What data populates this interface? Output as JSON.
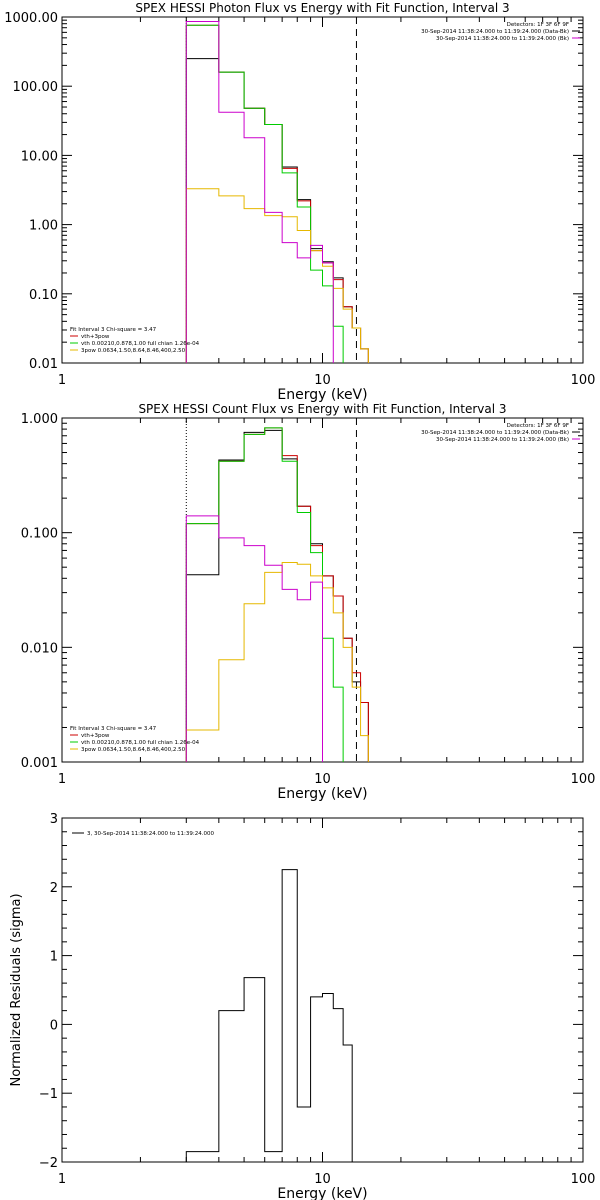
{
  "chart_data": [
    {
      "type": "line",
      "title": "SPEX HESSI Photon Flux vs Energy with Fit Function, Interval 3",
      "xlabel": "Energy (keV)",
      "ylabel": "",
      "xscale": "log",
      "yscale": "log",
      "xlim": [
        1,
        100
      ],
      "ylim": [
        0.01,
        1000
      ],
      "xticks": [
        {
          "v": 1,
          "label": "1"
        },
        {
          "v": 10,
          "label": "10"
        },
        {
          "v": 100,
          "label": "100"
        }
      ],
      "yticks": [
        {
          "v": 1000,
          "label": "1000.00"
        },
        {
          "v": 100,
          "label": "100.00"
        },
        {
          "v": 10,
          "label": "10.00"
        },
        {
          "v": 1,
          "label": "1.00"
        },
        {
          "v": 0.1,
          "label": "0.10"
        },
        {
          "v": 0.01,
          "label": "0.01"
        }
      ],
      "vlines": [
        {
          "x": 3.0,
          "style": "dotted",
          "color": "#000000"
        },
        {
          "x": 13.5,
          "style": "dashed",
          "color": "#000000"
        }
      ],
      "info_lines": [
        "Detectors: 1F 3F 6F 9F",
        "30-Sep-2014 11:38:24.000 to 11:39:24.000 (Data-Bk)",
        "30-Sep-2014 11:38:24.000 to 11:39:24.000 (Bk)"
      ],
      "info_colors": [
        "#000000",
        "#000000",
        "#cc00cc"
      ],
      "legend_position": "bottom-left",
      "legend_header": "Fit Interval 3   Chi-square = 3.47",
      "legend": [
        {
          "text": "vth+3pow",
          "color": "#cc0000"
        },
        {
          "text": "vth 0.00210,0.878,1.00  full chian 1.26e-04",
          "color": "#00cc00"
        },
        {
          "text": "3pow 0.0634,1.50,8.64,8.46,400,2.50",
          "color": "#e6b800"
        }
      ],
      "edges": [
        3.0,
        4.0,
        5.0,
        6.0,
        7.0,
        8.0,
        9.0,
        10.0,
        11.0,
        12.0,
        13.0,
        14.0,
        15.0,
        16.0
      ],
      "series": [
        {
          "color": "#000000",
          "values": [
            250,
            160,
            48,
            28,
            6.8,
            2.3,
            0.45,
            0.29,
            0.17,
            0.065,
            0.032,
            0.016,
            0.0
          ]
        },
        {
          "color": "#cc0000",
          "values": [
            760,
            160,
            48,
            28,
            6.5,
            2.2,
            0.42,
            0.28,
            0.16,
            0.065,
            0.032,
            0.016,
            0.0
          ]
        },
        {
          "color": "#00cc00",
          "values": [
            760,
            160,
            48,
            28,
            5.6,
            1.8,
            0.22,
            0.13,
            0.034,
            0.0,
            0.0,
            0.0,
            0.0
          ]
        },
        {
          "color": "#e6b800",
          "values": [
            3.3,
            2.6,
            1.7,
            1.35,
            1.3,
            0.82,
            0.42,
            0.25,
            0.12,
            0.06,
            0.032,
            0.016,
            0.0
          ]
        },
        {
          "color": "#cc00cc",
          "values": [
            860,
            42,
            18,
            1.5,
            0.55,
            0.33,
            0.5,
            0.28,
            0.0,
            0.0,
            0.0,
            0.0,
            0.0
          ]
        }
      ]
    },
    {
      "type": "line",
      "title": "SPEX HESSI Count Flux vs Energy with Fit Function, Interval 3",
      "xlabel": "Energy (keV)",
      "ylabel": "",
      "xscale": "log",
      "yscale": "log",
      "xlim": [
        1,
        100
      ],
      "ylim": [
        0.001,
        1.0
      ],
      "xticks": [
        {
          "v": 1,
          "label": "1"
        },
        {
          "v": 10,
          "label": "10"
        },
        {
          "v": 100,
          "label": "100"
        }
      ],
      "yticks": [
        {
          "v": 1.0,
          "label": "1.000"
        },
        {
          "v": 0.1,
          "label": "0.100"
        },
        {
          "v": 0.01,
          "label": "0.010"
        },
        {
          "v": 0.001,
          "label": "0.001"
        }
      ],
      "vlines": [
        {
          "x": 3.0,
          "style": "dotted",
          "color": "#000000"
        },
        {
          "x": 13.5,
          "style": "dashed",
          "color": "#000000"
        }
      ],
      "info_lines": [
        "Detectors: 1F 3F 6F 9F",
        "30-Sep-2014 11:38:24.000 to 11:39:24.000 (Data-Bk)",
        "30-Sep-2014 11:38:24.000 to 11:39:24.000 (Bk)"
      ],
      "info_colors": [
        "#000000",
        "#000000",
        "#cc00cc"
      ],
      "legend_position": "bottom-left",
      "legend_header": "Fit Interval 3   Chi-square = 3.47",
      "legend": [
        {
          "text": "vth+3pow",
          "color": "#cc0000"
        },
        {
          "text": "vth 0.00210,0.878,1.00  full chian 1.26e-04",
          "color": "#00cc00"
        },
        {
          "text": "3pow 0.0634,1.50,8.64,8.46,400,2.50",
          "color": "#e6b800"
        }
      ],
      "edges": [
        3.0,
        4.0,
        5.0,
        6.0,
        7.0,
        8.0,
        9.0,
        10.0,
        11.0,
        12.0,
        13.0,
        14.0,
        15.0,
        16.0
      ],
      "series": [
        {
          "color": "#000000",
          "values": [
            0.043,
            0.43,
            0.75,
            0.78,
            0.44,
            0.17,
            0.08,
            0.042,
            0.028,
            0.012,
            0.005,
            0.0033,
            0.0
          ]
        },
        {
          "color": "#cc0000",
          "values": [
            0.12,
            0.42,
            0.72,
            0.82,
            0.47,
            0.17,
            0.077,
            0.042,
            0.028,
            0.012,
            0.006,
            0.0033,
            0.0
          ]
        },
        {
          "color": "#00cc00",
          "values": [
            0.12,
            0.42,
            0.72,
            0.82,
            0.42,
            0.15,
            0.067,
            0.012,
            0.0045,
            0.0,
            0.0,
            0.0,
            0.0
          ]
        },
        {
          "color": "#e6b800",
          "values": [
            0.0019,
            0.0078,
            0.024,
            0.045,
            0.055,
            0.053,
            0.042,
            0.033,
            0.02,
            0.01,
            0.0045,
            0.0017,
            0.0
          ]
        },
        {
          "color": "#cc00cc",
          "values": [
            0.14,
            0.09,
            0.077,
            0.052,
            0.032,
            0.026,
            0.037,
            0.0,
            0.0,
            0.0,
            0.0,
            0.0,
            0.0
          ]
        }
      ]
    },
    {
      "type": "line",
      "title": "",
      "xlabel": "Energy (keV)",
      "ylabel": "Normalized Residuals (sigma)",
      "xscale": "log",
      "yscale": "linear",
      "xlim": [
        1,
        100
      ],
      "ylim": [
        -2,
        3
      ],
      "xticks": [
        {
          "v": 1,
          "label": "1"
        },
        {
          "v": 10,
          "label": "10"
        },
        {
          "v": 100,
          "label": "100"
        }
      ],
      "yticks": [
        {
          "v": 3,
          "label": "3"
        },
        {
          "v": 2,
          "label": "2"
        },
        {
          "v": 1,
          "label": "1"
        },
        {
          "v": 0,
          "label": "0"
        },
        {
          "v": -1,
          "label": "−1"
        },
        {
          "v": -2,
          "label": "−2"
        }
      ],
      "vlines": [],
      "info_lines": [],
      "info_colors": [],
      "legend_position": "top-left",
      "legend_header": "",
      "legend": [
        {
          "text": "3, 30-Sep-2014 11:38:24.000 to 11:39:24.000",
          "color": "#000000"
        }
      ],
      "edges": [
        3.0,
        4.0,
        5.0,
        6.0,
        7.0,
        8.0,
        9.0,
        10.0,
        11.0,
        12.0,
        13.0,
        14.0
      ],
      "series": [
        {
          "color": "#000000",
          "values": [
            -1.85,
            0.2,
            0.68,
            -1.85,
            2.25,
            -1.2,
            0.4,
            0.45,
            0.23,
            -0.3,
            -2.0
          ]
        }
      ]
    }
  ]
}
